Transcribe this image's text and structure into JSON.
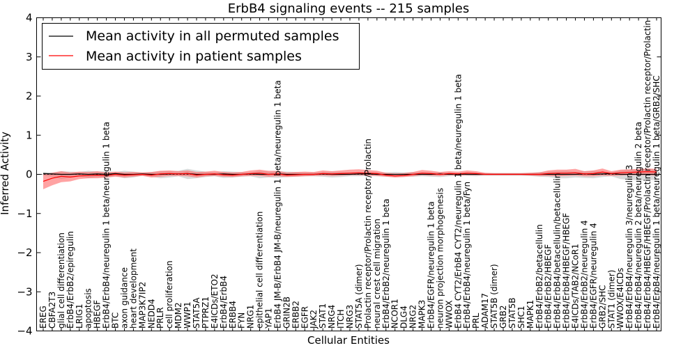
{
  "chart_data": {
    "type": "line",
    "title": "ErbB4 signaling events -- 215 samples",
    "xlabel": "Cellular Entities",
    "ylabel": "Inferred Activity",
    "ylim": [
      -4,
      4
    ],
    "yticks": [
      -4,
      -3,
      -2,
      -1,
      0,
      1,
      2,
      3,
      4
    ],
    "legend_position": "top-left",
    "colors": {
      "permuted_line": "#000000",
      "patient_line": "#ff0000",
      "permuted_band": "#bbbbbb",
      "patient_band": "#ff6666"
    },
    "categories": [
      "EREG",
      "CBFA2T3",
      "glial cell differentiation",
      "ErbB4/ErbB2/epiregulin",
      "LRIG1",
      "apoptosis",
      "HBEGF",
      "ErbB4/ErbB4/neuregulin 1 beta/neuregulin 1 beta",
      "BTC",
      "axon guidance",
      "heart development",
      "MAP3K7IP2",
      "NEDD4",
      "PRLR",
      "cell proliferation",
      "MDM2",
      "WWP1",
      "STAT5A",
      "PTPRZ1",
      "E4ICDs/ETO2",
      "ErbB4/ErbB4",
      "ERBB4",
      "FYN",
      "NRG1",
      "epithelial cell differentiation",
      "YAP1",
      "ErbB4 JM-B/ErbB4 JM-B/neuregulin 1 beta/neuregulin 1 beta",
      "GRIN2B",
      "ERBB2",
      "EGFR",
      "JAK2",
      "STAT1",
      "NRG4",
      "ITCH",
      "NRG3",
      "STAT5A (dimer)",
      "Prolactin receptor/Prolactin receptor/Prolactin",
      "neural crest cell migration",
      "ErbB4/ErbB2/neuregulin 1 beta",
      "NCOR1",
      "DLG4",
      "NRG2",
      "MAPK3",
      "ErbB4/EGFR/neuregulin 1 beta",
      "neuron projection morphogenesis",
      "WWOX",
      "ErbB4 CYT2/ErbB4 CYT2/neuregulin 1 beta/neuregulin 1 beta",
      "ErbB4/ErbB4/neuregulin 1 beta/Fyn",
      "PRL",
      "ADAM17",
      "STAT5B (dimer)",
      "GRB2",
      "STAT5B",
      "SHC1",
      "MAPK1",
      "ErbB4/ErbB2/betacellulin",
      "ErbB4/ErbB2/HBEGF",
      "ErbB4/ErbB4/betacellulin/betacellulin",
      "ErbB4/ErbB4/HBEGF/HBEGF",
      "E4ICDs/TAB2/NCoR1",
      "ErbB4/ErbB2/neuregulin 4",
      "ErbB4/EGFR/neuregulin 4",
      "GRB2/SHC",
      "STAT1 (dimer)",
      "WWOX/E4ICDs",
      "ErbB4/ErbB4/neuregulin 3/neuregulin 3",
      "ErbB4/ErbB4/neuregulin 2 beta/neuregulin 2 beta",
      "ErbB4/ErbB4/HBEGF/HBEGF/Prolactin receptor/Prolactin receptor/Prolactin",
      "ErbB4/ErbB4/neuregulin 1 beta/neuregulin 1 beta/GRB2/SHC"
    ],
    "series": [
      {
        "name": "Mean activity in all permuted samples",
        "values": [
          0.02,
          0.01,
          0.0,
          0.0,
          0.01,
          0.0,
          0.01,
          0.0,
          0.02,
          0.0,
          0.0,
          0.01,
          0.0,
          0.0,
          0.01,
          0.01,
          0.02,
          0.0,
          0.0,
          0.0,
          0.01,
          0.0,
          0.0,
          0.01,
          0.0,
          0.0,
          0.01,
          0.0,
          0.0,
          0.0,
          0.0,
          0.01,
          0.0,
          0.0,
          0.0,
          0.01,
          0.01,
          0.0,
          0.0,
          0.0,
          0.0,
          0.0,
          0.0,
          0.0,
          0.01,
          0.0,
          0.01,
          0.0,
          0.0,
          0.0,
          0.0,
          0.0,
          0.0,
          0.0,
          0.0,
          0.0,
          0.0,
          0.0,
          0.0,
          0.0,
          0.01,
          0.0,
          0.01,
          0.02,
          0.0,
          0.0,
          0.0,
          0.0,
          0.0
        ],
        "lower": [
          -0.03,
          -0.06,
          -0.12,
          -0.08,
          -0.05,
          -0.1,
          -0.07,
          -0.09,
          -0.04,
          -0.1,
          -0.08,
          -0.03,
          -0.06,
          -0.1,
          -0.08,
          -0.05,
          -0.12,
          -0.1,
          -0.07,
          -0.05,
          -0.09,
          -0.08,
          -0.06,
          -0.05,
          -0.1,
          -0.08,
          -0.09,
          -0.07,
          -0.06,
          -0.05,
          -0.05,
          -0.06,
          -0.08,
          -0.07,
          -0.05,
          -0.05,
          -0.04,
          -0.05,
          -0.06,
          -0.06,
          -0.05,
          -0.06,
          -0.05,
          -0.06,
          -0.07,
          -0.05,
          -0.04,
          -0.04,
          -0.05,
          -0.03,
          -0.03,
          -0.03,
          -0.03,
          -0.03,
          -0.04,
          -0.06,
          -0.07,
          -0.1,
          -0.1,
          -0.08,
          -0.09,
          -0.1,
          -0.07,
          -0.05,
          -0.12,
          -0.14,
          -0.15,
          -0.15,
          -0.14
        ],
        "upper": [
          0.06,
          0.05,
          0.08,
          0.07,
          0.06,
          0.09,
          0.07,
          0.08,
          0.06,
          0.09,
          0.07,
          0.05,
          0.06,
          0.08,
          0.08,
          0.09,
          0.14,
          0.1,
          0.07,
          0.05,
          0.08,
          0.07,
          0.06,
          0.05,
          0.09,
          0.07,
          0.08,
          0.07,
          0.06,
          0.05,
          0.05,
          0.06,
          0.07,
          0.06,
          0.05,
          0.05,
          0.04,
          0.05,
          0.05,
          0.06,
          0.05,
          0.06,
          0.05,
          0.05,
          0.06,
          0.05,
          0.04,
          0.04,
          0.04,
          0.03,
          0.03,
          0.03,
          0.03,
          0.03,
          0.04,
          0.06,
          0.07,
          0.08,
          0.09,
          0.07,
          0.08,
          0.09,
          0.06,
          0.05,
          0.1,
          0.12,
          0.13,
          0.14,
          0.13
        ]
      },
      {
        "name": "Mean activity in patient samples",
        "values": [
          -0.18,
          -0.1,
          -0.05,
          -0.07,
          -0.04,
          -0.03,
          -0.02,
          -0.03,
          0.0,
          -0.02,
          -0.01,
          0.0,
          -0.02,
          0.01,
          0.02,
          0.01,
          0.02,
          -0.02,
          0.0,
          0.01,
          -0.01,
          -0.02,
          0.0,
          0.02,
          0.03,
          0.0,
          0.01,
          -0.02,
          -0.01,
          0.0,
          0.0,
          0.02,
          0.01,
          0.02,
          0.03,
          0.04,
          0.03,
          0.02,
          -0.02,
          -0.04,
          -0.03,
          0.0,
          0.03,
          0.02,
          0.0,
          0.02,
          0.01,
          0.03,
          0.02,
          0.0,
          0.0,
          0.0,
          0.0,
          0.0,
          0.0,
          0.0,
          0.02,
          0.03,
          0.03,
          0.04,
          0.01,
          0.02,
          0.06,
          0.02,
          0.04,
          0.05,
          0.06,
          0.07,
          0.06
        ],
        "lower": [
          -0.38,
          -0.28,
          -0.2,
          -0.18,
          -0.12,
          -0.1,
          -0.1,
          -0.08,
          -0.06,
          -0.08,
          -0.06,
          -0.04,
          -0.08,
          -0.06,
          -0.04,
          -0.04,
          -0.05,
          -0.08,
          -0.05,
          -0.04,
          -0.06,
          -0.07,
          -0.05,
          -0.04,
          -0.04,
          -0.06,
          -0.05,
          -0.07,
          -0.06,
          -0.05,
          -0.04,
          -0.03,
          -0.04,
          -0.03,
          -0.02,
          -0.02,
          -0.03,
          -0.04,
          -0.06,
          -0.08,
          -0.07,
          -0.05,
          -0.02,
          -0.03,
          -0.04,
          -0.02,
          -0.03,
          -0.02,
          -0.02,
          -0.02,
          -0.02,
          -0.02,
          -0.02,
          -0.02,
          -0.03,
          -0.04,
          -0.04,
          -0.05,
          -0.04,
          -0.03,
          -0.05,
          -0.05,
          -0.03,
          -0.04,
          -0.03,
          -0.02,
          -0.02,
          -0.02,
          -0.03
        ],
        "upper": [
          0.0,
          0.04,
          0.08,
          0.05,
          0.07,
          0.06,
          0.08,
          0.05,
          0.07,
          0.05,
          0.06,
          0.05,
          0.06,
          0.09,
          0.1,
          0.08,
          0.1,
          0.06,
          0.07,
          0.09,
          0.06,
          0.05,
          0.06,
          0.1,
          0.12,
          0.09,
          0.09,
          0.05,
          0.06,
          0.07,
          0.06,
          0.1,
          0.08,
          0.1,
          0.12,
          0.13,
          0.11,
          0.09,
          0.04,
          0.02,
          0.03,
          0.06,
          0.11,
          0.09,
          0.06,
          0.08,
          0.07,
          0.1,
          0.08,
          0.04,
          0.03,
          0.03,
          0.03,
          0.03,
          0.04,
          0.05,
          0.1,
          0.12,
          0.12,
          0.14,
          0.08,
          0.1,
          0.15,
          0.08,
          0.12,
          0.13,
          0.14,
          0.15,
          0.14
        ]
      }
    ]
  }
}
